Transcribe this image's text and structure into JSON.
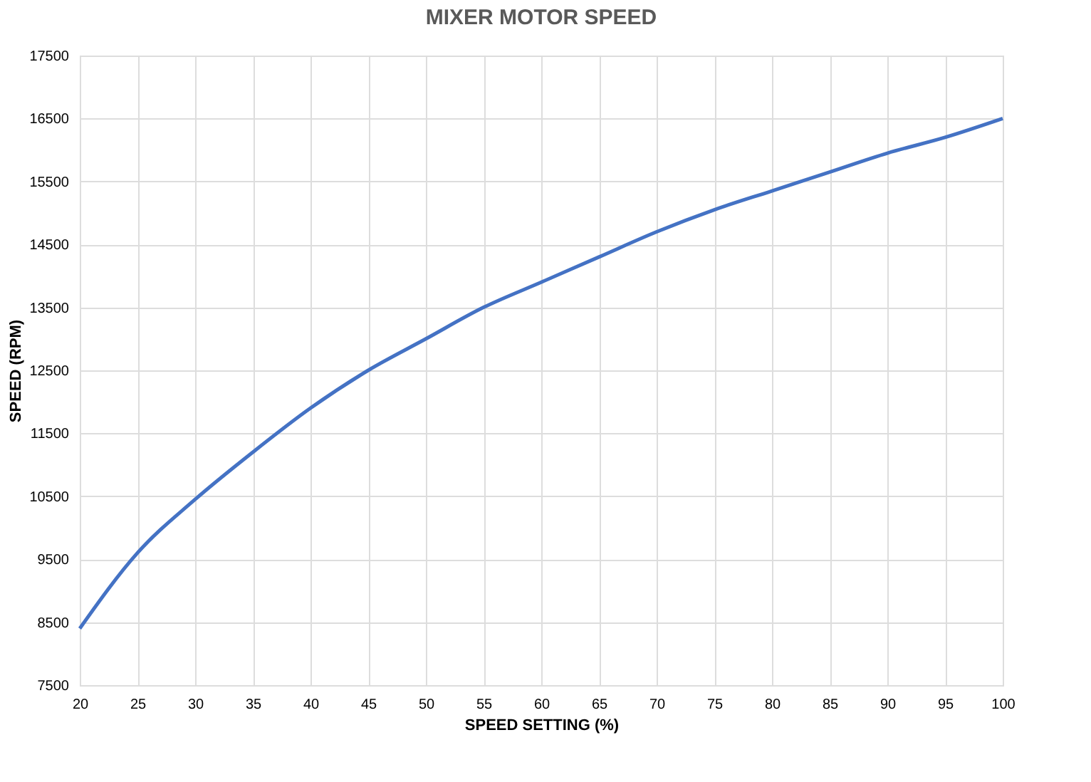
{
  "chart_data": {
    "type": "line",
    "title": "MIXER MOTOR SPEED",
    "xlabel": "SPEED SETTING (%)",
    "ylabel": "SPEED (RPM)",
    "x": [
      20,
      25,
      30,
      35,
      40,
      45,
      50,
      55,
      60,
      65,
      70,
      75,
      80,
      85,
      90,
      95,
      100
    ],
    "series": [
      {
        "color": "#4472c4",
        "values": [
          8400,
          9600,
          10450,
          11200,
          11900,
          12500,
          13000,
          13500,
          13900,
          14300,
          14700,
          15050,
          15350,
          15650,
          15950,
          16200,
          16500
        ]
      }
    ],
    "xlim": [
      20,
      100
    ],
    "xticks": [
      20,
      25,
      30,
      35,
      40,
      45,
      50,
      55,
      60,
      65,
      70,
      75,
      80,
      85,
      90,
      95,
      100
    ],
    "ylim": [
      7500,
      17500
    ],
    "yticks": [
      7500,
      8500,
      9500,
      10500,
      11500,
      12500,
      13500,
      14500,
      15500,
      16500,
      17500
    ],
    "grid": true,
    "marker": "none",
    "line_style": "solid"
  }
}
